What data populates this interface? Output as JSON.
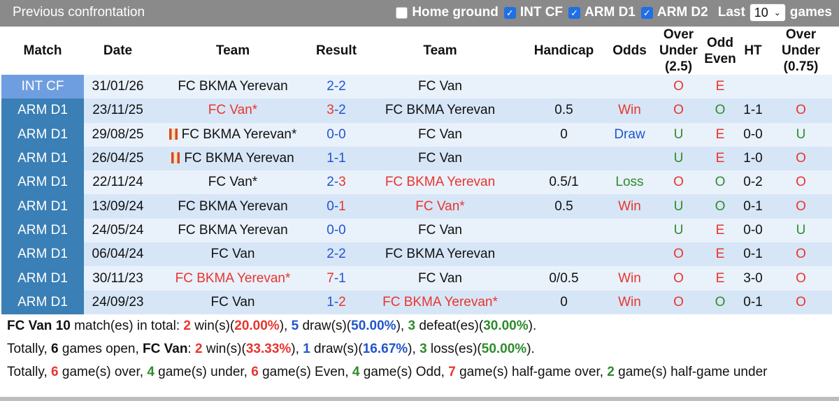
{
  "header": {
    "title": "Previous confrontation",
    "filters": [
      {
        "label": "Home ground",
        "checked": false
      },
      {
        "label": "INT CF",
        "checked": true
      },
      {
        "label": "ARM D1",
        "checked": true
      },
      {
        "label": "ARM D2",
        "checked": true
      }
    ],
    "last_label": "Last",
    "last_value": "10",
    "games_label": "games"
  },
  "columns": {
    "match": "Match",
    "date": "Date",
    "team_home": "Team",
    "result": "Result",
    "team_away": "Team",
    "handicap": "Handicap",
    "odds": "Odds",
    "over_under": "Over Under (2.5)",
    "odd_even": "Odd Even",
    "ht": "HT",
    "over_under2": "Over Under (0.75)"
  },
  "rows": [
    {
      "league": "INT CF",
      "date": "31/01/26",
      "home": "FC BKMA Yerevan",
      "home_red": false,
      "home_flag": false,
      "score_h": "2",
      "score_a": "2",
      "away": "FC Van",
      "away_red": false,
      "handicap": "",
      "odds": "",
      "ou": "O",
      "oe": "E",
      "ht": "",
      "ou2": ""
    },
    {
      "league": "ARM D1",
      "date": "23/11/25",
      "home": "FC Van*",
      "home_red": true,
      "home_flag": false,
      "score_h": "3",
      "score_a": "2",
      "away": "FC BKMA Yerevan",
      "away_red": false,
      "handicap": "0.5",
      "odds": "Win",
      "ou": "O",
      "oe": "O",
      "ht": "1-1",
      "ou2": "O"
    },
    {
      "league": "ARM D1",
      "date": "29/08/25",
      "home": "FC BKMA Yerevan*",
      "home_red": false,
      "home_flag": true,
      "score_h": "0",
      "score_a": "0",
      "away": "FC Van",
      "away_red": false,
      "handicap": "0",
      "odds": "Draw",
      "ou": "U",
      "oe": "E",
      "ht": "0-0",
      "ou2": "U"
    },
    {
      "league": "ARM D1",
      "date": "26/04/25",
      "home": "FC BKMA Yerevan",
      "home_red": false,
      "home_flag": true,
      "score_h": "1",
      "score_a": "1",
      "away": "FC Van",
      "away_red": false,
      "handicap": "",
      "odds": "",
      "ou": "U",
      "oe": "E",
      "ht": "1-0",
      "ou2": "O"
    },
    {
      "league": "ARM D1",
      "date": "22/11/24",
      "home": "FC Van*",
      "home_red": false,
      "home_flag": false,
      "score_h": "2",
      "score_a": "3",
      "away": "FC BKMA Yerevan",
      "away_red": true,
      "handicap": "0.5/1",
      "odds": "Loss",
      "ou": "O",
      "oe": "O",
      "ht": "0-2",
      "ou2": "O"
    },
    {
      "league": "ARM D1",
      "date": "13/09/24",
      "home": "FC BKMA Yerevan",
      "home_red": false,
      "home_flag": false,
      "score_h": "0",
      "score_a": "1",
      "away": "FC Van*",
      "away_red": true,
      "handicap": "0.5",
      "odds": "Win",
      "ou": "U",
      "oe": "O",
      "ht": "0-1",
      "ou2": "O"
    },
    {
      "league": "ARM D1",
      "date": "24/05/24",
      "home": "FC BKMA Yerevan",
      "home_red": false,
      "home_flag": false,
      "score_h": "0",
      "score_a": "0",
      "away": "FC Van",
      "away_red": false,
      "handicap": "",
      "odds": "",
      "ou": "U",
      "oe": "E",
      "ht": "0-0",
      "ou2": "U"
    },
    {
      "league": "ARM D1",
      "date": "06/04/24",
      "home": "FC Van",
      "home_red": false,
      "home_flag": false,
      "score_h": "2",
      "score_a": "2",
      "away": "FC BKMA Yerevan",
      "away_red": false,
      "handicap": "",
      "odds": "",
      "ou": "O",
      "oe": "E",
      "ht": "0-1",
      "ou2": "O"
    },
    {
      "league": "ARM D1",
      "date": "30/11/23",
      "home": "FC BKMA Yerevan*",
      "home_red": true,
      "home_flag": false,
      "score_h": "7",
      "score_a": "1",
      "away": "FC Van",
      "away_red": false,
      "handicap": "0/0.5",
      "odds": "Win",
      "ou": "O",
      "oe": "E",
      "ht": "3-0",
      "ou2": "O"
    },
    {
      "league": "ARM D1",
      "date": "24/09/23",
      "home": "FC Van",
      "home_red": false,
      "home_flag": false,
      "score_h": "1",
      "score_a": "2",
      "away": "FC BKMA Yerevan*",
      "away_red": true,
      "handicap": "0",
      "odds": "Win",
      "ou": "O",
      "oe": "O",
      "ht": "0-1",
      "ou2": "O"
    }
  ],
  "summary": {
    "line1": {
      "team": "FC Van",
      "count": "10",
      "t1": " match(es) in total: ",
      "wins": "2",
      "t2": " win(s)(",
      "win_pct": "20.00%",
      "t3": "), ",
      "draws": "5",
      "t4": " draw(s)(",
      "draw_pct": "50.00%",
      "t5": "), ",
      "defeats": "3",
      "t6": " defeat(es)(",
      "defeat_pct": "30.00%",
      "t7": ")."
    },
    "line2": {
      "t0": "Totally, ",
      "open": "6",
      "t1": " games open, ",
      "team": "FC Van",
      "t2": ": ",
      "wins": "2",
      "t3": " win(s)(",
      "win_pct": "33.33%",
      "t4": "), ",
      "draws": "1",
      "t5": " draw(s)(",
      "draw_pct": "16.67%",
      "t6": "), ",
      "losses": "3",
      "t7": " loss(es)(",
      "loss_pct": "50.00%",
      "t8": ")."
    },
    "line3": {
      "t0": "Totally, ",
      "over": "6",
      "t1": " game(s) over, ",
      "under": "4",
      "t2": " game(s) under, ",
      "even": "6",
      "t3": " game(s) Even, ",
      "odd": "4",
      "t4": " game(s) Odd, ",
      "half_over": "7",
      "t5": " game(s) half-game over, ",
      "half_under": "2",
      "t6": " game(s) half-game under"
    }
  },
  "colors": {
    "win": "#e8352e",
    "draw": "#2255cc",
    "loss": "#2e8b2e",
    "league_arm": "#3a7fb5",
    "league_int": "#6f9ee0"
  }
}
